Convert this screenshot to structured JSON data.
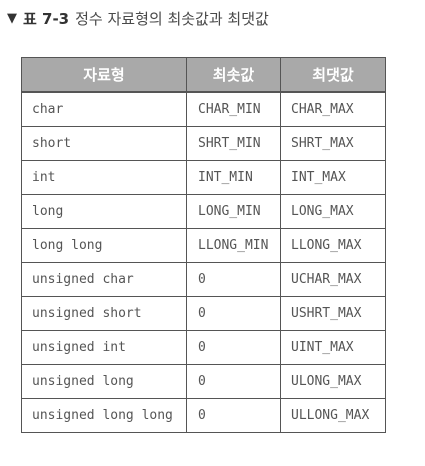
{
  "caption": {
    "marker": "▼",
    "label": "표 7-3",
    "title": "정수 자료형의 최솟값과 최댓값"
  },
  "table": {
    "headers": [
      "자료형",
      "최솟값",
      "최댓값"
    ],
    "rows": [
      {
        "type": "char",
        "min": "CHAR_MIN",
        "max": "CHAR_MAX"
      },
      {
        "type": "short",
        "min": "SHRT_MIN",
        "max": "SHRT_MAX"
      },
      {
        "type": "int",
        "min": "INT_MIN",
        "max": "INT_MAX"
      },
      {
        "type": "long",
        "min": "LONG_MIN",
        "max": "LONG_MAX"
      },
      {
        "type": "long long",
        "min": "LLONG_MIN",
        "max": "LLONG_MAX"
      },
      {
        "type": "unsigned char",
        "min": "0",
        "max": "UCHAR_MAX"
      },
      {
        "type": "unsigned short",
        "min": "0",
        "max": "USHRT_MAX"
      },
      {
        "type": "unsigned int",
        "min": "0",
        "max": "UINT_MAX"
      },
      {
        "type": "unsigned long",
        "min": "0",
        "max": "ULONG_MAX"
      },
      {
        "type": "unsigned long long",
        "min": "0",
        "max": "ULLONG_MAX"
      }
    ]
  }
}
